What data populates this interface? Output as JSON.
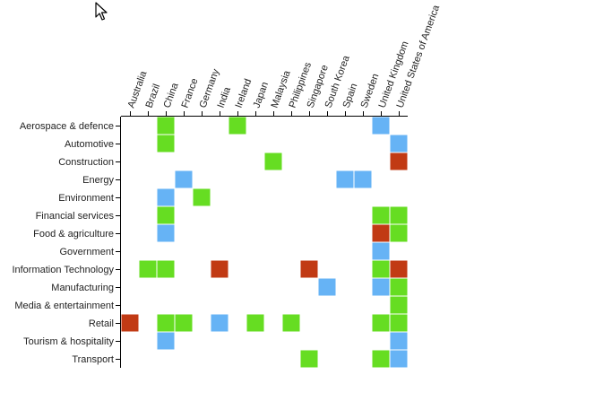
{
  "cursor": {
    "icon": "mouse-pointer-icon"
  },
  "chart_data": {
    "type": "heatmap",
    "title": "",
    "xlabel": "",
    "ylabel": "",
    "legend": "none",
    "grid": false,
    "colors": {
      "green": "#66dd22",
      "blue": "#66b3f5",
      "red": "#c13a14"
    },
    "x_categories": [
      "Australia",
      "Brazil",
      "China",
      "France",
      "Germany",
      "India",
      "Ireland",
      "Japan",
      "Malaysia",
      "Philippines",
      "Singapore",
      "South Korea",
      "Spain",
      "Sweden",
      "United Kingdom",
      "United States of America"
    ],
    "y_categories": [
      "Aerospace & defence",
      "Automotive",
      "Construction",
      "Energy",
      "Environment",
      "Financial services",
      "Food & agriculture",
      "Government",
      "Information Technology",
      "Manufacturing",
      "Media & entertainment",
      "Retail",
      "Tourism & hospitality",
      "Transport"
    ],
    "cells": [
      {
        "x": "China",
        "y": "Aerospace & defence",
        "value": "green"
      },
      {
        "x": "Ireland",
        "y": "Aerospace & defence",
        "value": "green"
      },
      {
        "x": "United Kingdom",
        "y": "Aerospace & defence",
        "value": "blue"
      },
      {
        "x": "China",
        "y": "Automotive",
        "value": "green"
      },
      {
        "x": "United States of America",
        "y": "Automotive",
        "value": "blue"
      },
      {
        "x": "Malaysia",
        "y": "Construction",
        "value": "green"
      },
      {
        "x": "United States of America",
        "y": "Construction",
        "value": "red"
      },
      {
        "x": "France",
        "y": "Energy",
        "value": "blue"
      },
      {
        "x": "Spain",
        "y": "Energy",
        "value": "blue"
      },
      {
        "x": "Sweden",
        "y": "Energy",
        "value": "blue"
      },
      {
        "x": "China",
        "y": "Environment",
        "value": "blue"
      },
      {
        "x": "Germany",
        "y": "Environment",
        "value": "green"
      },
      {
        "x": "China",
        "y": "Financial services",
        "value": "green"
      },
      {
        "x": "United Kingdom",
        "y": "Financial services",
        "value": "green"
      },
      {
        "x": "United States of America",
        "y": "Financial services",
        "value": "green"
      },
      {
        "x": "China",
        "y": "Food & agriculture",
        "value": "blue"
      },
      {
        "x": "United Kingdom",
        "y": "Food & agriculture",
        "value": "red"
      },
      {
        "x": "United States of America",
        "y": "Food & agriculture",
        "value": "green"
      },
      {
        "x": "United Kingdom",
        "y": "Government",
        "value": "blue"
      },
      {
        "x": "Brazil",
        "y": "Information Technology",
        "value": "green"
      },
      {
        "x": "China",
        "y": "Information Technology",
        "value": "green"
      },
      {
        "x": "India",
        "y": "Information Technology",
        "value": "red"
      },
      {
        "x": "Singapore",
        "y": "Information Technology",
        "value": "red"
      },
      {
        "x": "United Kingdom",
        "y": "Information Technology",
        "value": "green"
      },
      {
        "x": "United States of America",
        "y": "Information Technology",
        "value": "red"
      },
      {
        "x": "South Korea",
        "y": "Manufacturing",
        "value": "blue"
      },
      {
        "x": "United Kingdom",
        "y": "Manufacturing",
        "value": "blue"
      },
      {
        "x": "United States of America",
        "y": "Manufacturing",
        "value": "green"
      },
      {
        "x": "United States of America",
        "y": "Media & entertainment",
        "value": "green"
      },
      {
        "x": "Australia",
        "y": "Retail",
        "value": "red"
      },
      {
        "x": "China",
        "y": "Retail",
        "value": "green"
      },
      {
        "x": "France",
        "y": "Retail",
        "value": "green"
      },
      {
        "x": "India",
        "y": "Retail",
        "value": "blue"
      },
      {
        "x": "Japan",
        "y": "Retail",
        "value": "green"
      },
      {
        "x": "Philippines",
        "y": "Retail",
        "value": "green"
      },
      {
        "x": "United Kingdom",
        "y": "Retail",
        "value": "green"
      },
      {
        "x": "United States of America",
        "y": "Retail",
        "value": "green"
      },
      {
        "x": "China",
        "y": "Tourism & hospitality",
        "value": "blue"
      },
      {
        "x": "United States of America",
        "y": "Tourism & hospitality",
        "value": "blue"
      },
      {
        "x": "Singapore",
        "y": "Transport",
        "value": "green"
      },
      {
        "x": "United Kingdom",
        "y": "Transport",
        "value": "green"
      },
      {
        "x": "United States of America",
        "y": "Transport",
        "value": "blue"
      }
    ]
  }
}
